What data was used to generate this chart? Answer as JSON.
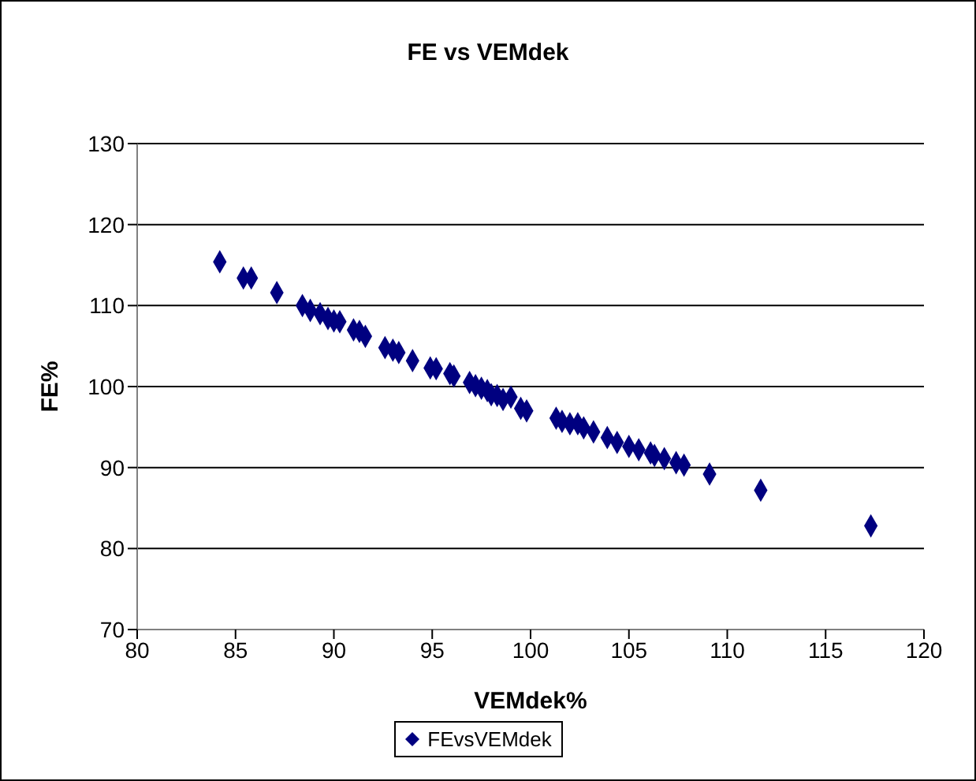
{
  "chart_data": {
    "type": "scatter",
    "title": "FE vs VEMdek",
    "xlabel": "VEMdek%",
    "ylabel": "FE%",
    "xlim": [
      80,
      120
    ],
    "xticks": [
      80,
      85,
      90,
      95,
      100,
      105,
      110,
      115,
      120
    ],
    "ylim": [
      70,
      130
    ],
    "yticks": [
      70,
      80,
      90,
      100,
      110,
      120,
      130
    ],
    "grid": "y",
    "legend": "bottom",
    "marker": "diamond",
    "series": [
      {
        "name": "FEvsVEMdek",
        "color": "#000080",
        "x": [
          84.2,
          85.4,
          85.8,
          87.1,
          88.4,
          88.8,
          89.3,
          89.7,
          90.0,
          90.3,
          91.0,
          91.3,
          91.6,
          92.6,
          93.0,
          93.3,
          94.0,
          94.9,
          95.2,
          95.9,
          96.1,
          96.9,
          97.2,
          97.5,
          97.8,
          98.0,
          98.3,
          98.6,
          99.0,
          99.5,
          99.8,
          101.3,
          101.6,
          102.0,
          102.4,
          102.7,
          103.2,
          103.9,
          104.4,
          105.0,
          105.5,
          106.1,
          106.3,
          106.8,
          107.4,
          107.8,
          109.1,
          111.7,
          117.3
        ],
        "values": [
          115.4,
          113.4,
          113.4,
          111.6,
          110.0,
          109.4,
          109.0,
          108.4,
          108.1,
          108.0,
          107.0,
          106.8,
          106.2,
          104.8,
          104.5,
          104.2,
          103.2,
          102.3,
          102.2,
          101.6,
          101.3,
          100.5,
          100.1,
          99.8,
          99.5,
          99.0,
          98.9,
          98.4,
          98.7,
          97.3,
          97.0,
          96.1,
          95.7,
          95.4,
          95.4,
          94.9,
          94.4,
          93.7,
          93.1,
          92.6,
          92.2,
          91.8,
          91.5,
          91.1,
          90.6,
          90.3,
          89.2,
          87.2,
          82.8
        ]
      }
    ]
  }
}
